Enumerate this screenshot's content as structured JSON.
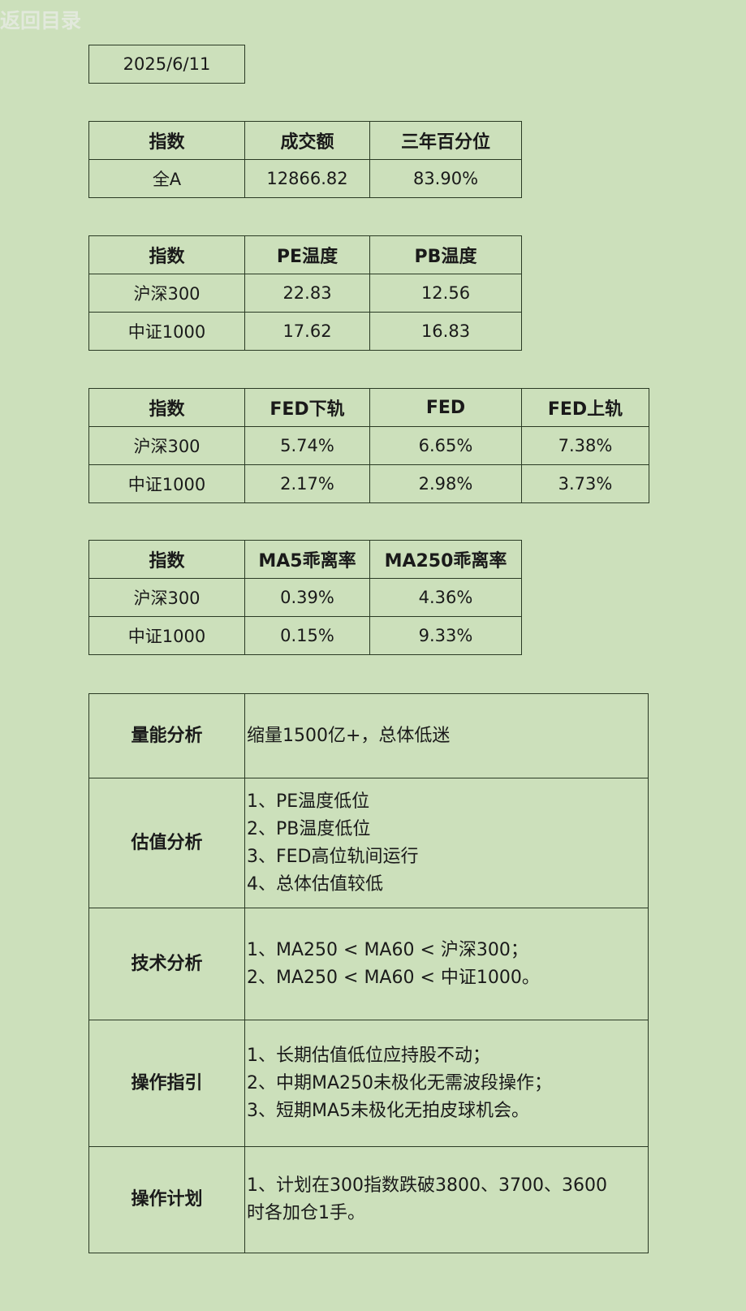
{
  "back_link": "返回目录",
  "date": "2025/6/11",
  "turnover_table": {
    "headers": [
      "指数",
      "成交额",
      "三年百分位"
    ],
    "rows": [
      [
        "全A",
        "12866.82",
        "83.90%"
      ]
    ]
  },
  "temperature_table": {
    "headers": [
      "指数",
      "PE温度",
      "PB温度"
    ],
    "rows": [
      [
        "沪深300",
        "22.83",
        "12.56"
      ],
      [
        "中证1000",
        "17.62",
        "16.83"
      ]
    ]
  },
  "fed_table": {
    "headers": [
      "指数",
      "FED下轨",
      "FED",
      "FED上轨"
    ],
    "rows": [
      [
        "沪深300",
        "5.74%",
        "6.65%",
        "7.38%"
      ],
      [
        "中证1000",
        "2.17%",
        "2.98%",
        "3.73%"
      ]
    ]
  },
  "ma_table": {
    "headers": [
      "指数",
      "MA5乖离率",
      "MA250乖离率"
    ],
    "rows": [
      [
        "沪深300",
        "0.39%",
        "4.36%"
      ],
      [
        "中证1000",
        "0.15%",
        "9.33%"
      ]
    ]
  },
  "analysis": [
    {
      "label": "量能分析",
      "lines": [
        "缩量1500亿+，总体低迷"
      ]
    },
    {
      "label": "估值分析",
      "lines": [
        "1、PE温度低位",
        "2、PB温度低位",
        "3、FED高位轨间运行",
        "4、总体估值较低"
      ]
    },
    {
      "label": "技术分析",
      "lines": [
        "1、MA250 < MA60 < 沪深300；",
        "2、MA250 < MA60 < 中证1000。"
      ]
    },
    {
      "label": "操作指引",
      "lines": [
        "1、长期估值低位应持股不动；",
        "2、中期MA250未极化无需波段操作；",
        "3、短期MA5未极化无拍皮球机会。"
      ]
    },
    {
      "label": "操作计划",
      "lines": [
        "1、计划在300指数跌破3800、3700、3600",
        "时各加仓1手。"
      ]
    }
  ]
}
